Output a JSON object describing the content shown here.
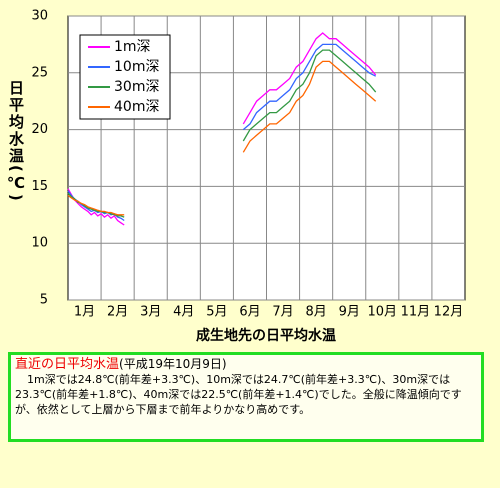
{
  "chart_data": {
    "type": "line",
    "title": "成生地先の日平均水温",
    "y_label": "日平均水温(℃)",
    "xlim": [
      0.5,
      12.5
    ],
    "xticks": [
      {
        "value": 1,
        "label": "1月"
      },
      {
        "value": 2,
        "label": "2月"
      },
      {
        "value": 3,
        "label": "3月"
      },
      {
        "value": 4,
        "label": "4月"
      },
      {
        "value": 5,
        "label": "5月"
      },
      {
        "value": 6,
        "label": "6月"
      },
      {
        "value": 7,
        "label": "7月"
      },
      {
        "value": 8,
        "label": "8月"
      },
      {
        "value": 9,
        "label": "9月"
      },
      {
        "value": 10,
        "label": "10月"
      },
      {
        "value": 11,
        "label": "11月"
      },
      {
        "value": 12,
        "label": "12月"
      }
    ],
    "ylim": [
      5,
      30
    ],
    "yticks": [
      5,
      10,
      15,
      20,
      25,
      30
    ],
    "grid": true,
    "legend": "upper left",
    "x": [
      0.5,
      0.6,
      0.7,
      0.8,
      0.9,
      1.0,
      1.1,
      1.2,
      1.3,
      1.4,
      1.5,
      1.6,
      1.7,
      1.8,
      1.9,
      2.0,
      2.1,
      2.2,
      null,
      5.8,
      6.0,
      6.2,
      6.4,
      6.6,
      6.8,
      7.0,
      7.2,
      7.4,
      7.6,
      7.8,
      8.0,
      8.2,
      8.4,
      8.6,
      8.8,
      9.0,
      9.2,
      9.4,
      9.6,
      9.8
    ],
    "series": [
      {
        "name": "1m深",
        "color": "#ff00ff",
        "values": [
          14.8,
          14.3,
          13.8,
          13.5,
          13.2,
          13.0,
          12.8,
          12.5,
          12.7,
          12.4,
          12.6,
          12.3,
          12.5,
          12.2,
          12.4,
          12.0,
          11.8,
          11.6,
          null,
          20.5,
          21.5,
          22.5,
          23,
          23.5,
          23.5,
          24,
          24.5,
          25.5,
          26,
          27,
          28,
          28.5,
          28,
          28,
          27.5,
          27,
          26.5,
          26,
          25.5,
          24.8
        ]
      },
      {
        "name": "10m深",
        "color": "#3366ff",
        "values": [
          14.6,
          14.2,
          13.9,
          13.7,
          13.4,
          13.2,
          13.0,
          12.8,
          12.9,
          12.7,
          12.8,
          12.6,
          12.7,
          12.5,
          12.6,
          12.3,
          12.2,
          12.0,
          null,
          20,
          20.5,
          21.5,
          22,
          22.5,
          22.5,
          23,
          23.5,
          24.5,
          25,
          26,
          27,
          27.5,
          27.5,
          27.5,
          27,
          26.5,
          26,
          25.5,
          25,
          24.7
        ]
      },
      {
        "name": "30m深",
        "color": "#339944",
        "values": [
          14.4,
          14.1,
          13.9,
          13.6,
          13.5,
          13.3,
          13.1,
          13.0,
          12.9,
          12.8,
          12.8,
          12.7,
          12.7,
          12.6,
          12.5,
          12.4,
          12.4,
          12.3,
          null,
          19,
          20,
          20.5,
          21,
          21.5,
          21.5,
          22,
          22.5,
          23.5,
          24,
          25,
          26.5,
          27,
          27,
          26.5,
          26,
          25.5,
          25,
          24.5,
          24,
          23.3
        ]
      },
      {
        "name": "40m深",
        "color": "#ff6600",
        "values": [
          14.2,
          14.0,
          13.8,
          13.7,
          13.5,
          13.4,
          13.2,
          13.1,
          13.0,
          12.9,
          12.8,
          12.8,
          12.7,
          12.7,
          12.6,
          12.5,
          12.5,
          12.5,
          null,
          18,
          19,
          19.5,
          20,
          20.5,
          20.5,
          21,
          21.5,
          22.5,
          23,
          24,
          25.5,
          26,
          26,
          25.5,
          25,
          24.5,
          24,
          23.5,
          23,
          22.5
        ]
      }
    ]
  },
  "notice": {
    "title": "直近の日平均水温",
    "date": "(平成19年10月9日)",
    "body": "1m深では24.8℃(前年差+3.3℃)、10m深では24.7℃(前年差+3.3℃)、30m深では23.3℃(前年差+1.8℃)、40m深では22.5℃(前年差+1.4℃)でした。全般に降温傾向ですが、依然として上層から下層まで前年よりかなり高めです。"
  }
}
